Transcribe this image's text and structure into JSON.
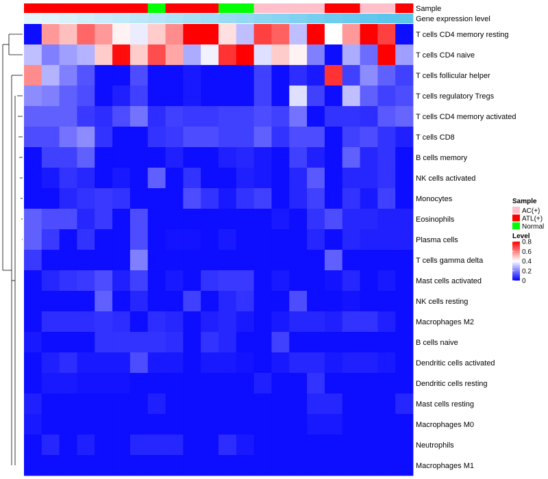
{
  "chart_data": {
    "type": "heatmap",
    "annotation_tracks": [
      {
        "name": "Sample",
        "categories": [
          "AC(+)",
          "ATL(+)",
          "Normal"
        ],
        "colors": {
          "AC(+)": "#ffc0cb",
          "ATL(+)": "#ff0000",
          "Normal": "#00ff00"
        },
        "values": [
          "ATL(+)",
          "ATL(+)",
          "ATL(+)",
          "ATL(+)",
          "ATL(+)",
          "ATL(+)",
          "ATL(+)",
          "Normal",
          "ATL(+)",
          "ATL(+)",
          "ATL(+)",
          "Normal",
          "Normal",
          "AC(+)",
          "AC(+)",
          "AC(+)",
          "AC(+)",
          "ATL(+)",
          "ATL(+)",
          "AC(+)",
          "AC(+)",
          "ATL(+)"
        ]
      },
      {
        "name": "Gene expression level",
        "colors": [
          "#e6f6fd",
          "#5bc5ec"
        ],
        "values": [
          0.0,
          0.05,
          0.1,
          0.15,
          0.2,
          0.25,
          0.3,
          0.35,
          0.4,
          0.45,
          0.5,
          0.55,
          0.6,
          0.65,
          0.7,
          0.75,
          0.8,
          0.85,
          0.9,
          0.95,
          1.0,
          1.0
        ]
      }
    ],
    "rows": [
      "T cells CD4 memory resting",
      "T cells CD4 naive",
      "T cells follicular helper",
      "T cells regulatory  Tregs",
      "T cells CD4 memory activated",
      "T cells CD8",
      "B cells memory",
      "NK cells activated",
      "Monocytes",
      "Eosinophils",
      "Plasma cells",
      "T cells gamma delta",
      "Mast cells activated",
      "NK cells resting",
      "Macrophages M2",
      "B cells naive",
      "Dendritic cells activated",
      "Dendritic cells resting",
      "Mast cells resting",
      "Macrophages M0",
      "Neutrophils",
      "Macrophages M1"
    ],
    "values": [
      [
        0.02,
        0.56,
        0.5,
        0.64,
        0.56,
        0.42,
        0.37,
        0.48,
        0.58,
        0.8,
        0.8,
        0.45,
        0.3,
        0.7,
        0.65,
        0.3,
        0.8,
        0.4,
        0.56,
        0.8,
        0.7,
        0.02
      ],
      [
        0.3,
        0.2,
        0.25,
        0.28,
        0.48,
        0.78,
        0.48,
        0.68,
        0.54,
        0.27,
        0.38,
        0.72,
        0.8,
        0.35,
        0.48,
        0.42,
        0.2,
        0.02,
        0.27,
        0.17,
        0.8,
        0.25
      ],
      [
        0.58,
        0.28,
        0.2,
        0.13,
        0.02,
        0.02,
        0.12,
        0.02,
        0.02,
        0.04,
        0.02,
        0.02,
        0.02,
        0.1,
        0.02,
        0.07,
        0.04,
        0.72,
        0.1,
        0.22,
        0.15,
        0.1
      ],
      [
        0.22,
        0.2,
        0.15,
        0.12,
        0.02,
        0.05,
        0.1,
        0.02,
        0.02,
        0.04,
        0.02,
        0.02,
        0.02,
        0.1,
        0.02,
        0.35,
        0.1,
        0.02,
        0.3,
        0.15,
        0.1,
        0.12
      ],
      [
        0.15,
        0.15,
        0.15,
        0.09,
        0.07,
        0.12,
        0.18,
        0.07,
        0.1,
        0.09,
        0.09,
        0.1,
        0.1,
        0.12,
        0.1,
        0.18,
        0.02,
        0.08,
        0.08,
        0.07,
        0.14,
        0.16
      ],
      [
        0.12,
        0.12,
        0.18,
        0.22,
        0.08,
        0.02,
        0.02,
        0.08,
        0.09,
        0.12,
        0.12,
        0.1,
        0.1,
        0.15,
        0.08,
        0.12,
        0.12,
        0.02,
        0.1,
        0.12,
        0.08,
        0.05
      ],
      [
        0.02,
        0.1,
        0.1,
        0.15,
        0.02,
        0.02,
        0.02,
        0.02,
        0.05,
        0.02,
        0.02,
        0.05,
        0.06,
        0.04,
        0.02,
        0.1,
        0.05,
        0.02,
        0.15,
        0.06,
        0.08,
        0.02
      ],
      [
        0.02,
        0.04,
        0.08,
        0.06,
        0.02,
        0.04,
        0.02,
        0.15,
        0.02,
        0.08,
        0.02,
        0.02,
        0.05,
        0.04,
        0.02,
        0.06,
        0.14,
        0.02,
        0.06,
        0.06,
        0.08,
        0.02
      ],
      [
        0.02,
        0.02,
        0.06,
        0.08,
        0.09,
        0.08,
        0.02,
        0.02,
        0.02,
        0.12,
        0.08,
        0.04,
        0.08,
        0.1,
        0.02,
        0.06,
        0.1,
        0.02,
        0.08,
        0.04,
        0.1,
        0.02
      ],
      [
        0.15,
        0.12,
        0.12,
        0.06,
        0.09,
        0.02,
        0.12,
        0.02,
        0.02,
        0.02,
        0.02,
        0.02,
        0.02,
        0.02,
        0.04,
        0.02,
        0.08,
        0.12,
        0.06,
        0.06,
        0.05,
        0.05
      ],
      [
        0.15,
        0.09,
        0.02,
        0.08,
        0.02,
        0.02,
        0.12,
        0.02,
        0.03,
        0.03,
        0.02,
        0.04,
        0.02,
        0.02,
        0.02,
        0.02,
        0.06,
        0.02,
        0.06,
        0.05,
        0.05,
        0.05
      ],
      [
        0.09,
        0.02,
        0.02,
        0.02,
        0.02,
        0.02,
        0.2,
        0.02,
        0.02,
        0.02,
        0.02,
        0.02,
        0.02,
        0.02,
        0.02,
        0.02,
        0.02,
        0.15,
        0.02,
        0.02,
        0.02,
        0.02
      ],
      [
        0.02,
        0.06,
        0.08,
        0.09,
        0.12,
        0.05,
        0.1,
        0.02,
        0.04,
        0.02,
        0.08,
        0.09,
        0.09,
        0.02,
        0.04,
        0.02,
        0.02,
        0.03,
        0.06,
        0.02,
        0.04,
        0.02
      ],
      [
        0.02,
        0.02,
        0.02,
        0.02,
        0.15,
        0.02,
        0.06,
        0.02,
        0.02,
        0.1,
        0.02,
        0.06,
        0.08,
        0.02,
        0.02,
        0.12,
        0.02,
        0.02,
        0.03,
        0.02,
        0.02,
        0.02
      ],
      [
        0.02,
        0.07,
        0.07,
        0.07,
        0.08,
        0.07,
        0.02,
        0.07,
        0.06,
        0.02,
        0.05,
        0.06,
        0.04,
        0.02,
        0.04,
        0.06,
        0.06,
        0.05,
        0.08,
        0.08,
        0.05,
        0.02
      ],
      [
        0.04,
        0.02,
        0.02,
        0.02,
        0.08,
        0.08,
        0.08,
        0.08,
        0.07,
        0.02,
        0.08,
        0.06,
        0.02,
        0.02,
        0.1,
        0.02,
        0.02,
        0.02,
        0.02,
        0.02,
        0.02,
        0.02
      ],
      [
        0.02,
        0.05,
        0.07,
        0.04,
        0.04,
        0.04,
        0.12,
        0.04,
        0.04,
        0.02,
        0.04,
        0.04,
        0.03,
        0.02,
        0.04,
        0.06,
        0.06,
        0.04,
        0.05,
        0.05,
        0.04,
        0.02
      ],
      [
        0.02,
        0.04,
        0.04,
        0.03,
        0.03,
        0.03,
        0.02,
        0.02,
        0.02,
        0.02,
        0.02,
        0.02,
        0.02,
        0.05,
        0.02,
        0.02,
        0.08,
        0.02,
        0.02,
        0.02,
        0.02,
        0.02
      ],
      [
        0.05,
        0.02,
        0.02,
        0.02,
        0.02,
        0.02,
        0.02,
        0.05,
        0.02,
        0.02,
        0.02,
        0.02,
        0.02,
        0.02,
        0.02,
        0.02,
        0.06,
        0.06,
        0.02,
        0.02,
        0.02,
        0.06
      ],
      [
        0.04,
        0.02,
        0.02,
        0.02,
        0.02,
        0.02,
        0.02,
        0.02,
        0.02,
        0.02,
        0.02,
        0.02,
        0.02,
        0.02,
        0.02,
        0.02,
        0.04,
        0.04,
        0.02,
        0.02,
        0.02,
        0.02
      ],
      [
        0.02,
        0.06,
        0.02,
        0.05,
        0.02,
        0.02,
        0.06,
        0.06,
        0.06,
        0.02,
        0.02,
        0.07,
        0.04,
        0.02,
        0.02,
        0.02,
        0.02,
        0.02,
        0.02,
        0.02,
        0.02,
        0.02
      ],
      [
        0.02,
        0.02,
        0.02,
        0.02,
        0.02,
        0.02,
        0.02,
        0.02,
        0.02,
        0.02,
        0.02,
        0.02,
        0.02,
        0.02,
        0.02,
        0.02,
        0.02,
        0.02,
        0.02,
        0.02,
        0.02,
        0.02
      ]
    ],
    "color_scale": {
      "low": "#0000ff",
      "mid": "#ffffff",
      "high": "#ff0000",
      "domain": [
        0,
        0.4,
        0.8
      ]
    },
    "legend": {
      "sample_title": "Sample",
      "level_title": "Level",
      "level_ticks": [
        "0.8",
        "0.6",
        "0.4",
        "0.2",
        "0"
      ],
      "placement": "right"
    },
    "row_dendrogram": true,
    "title": ""
  }
}
